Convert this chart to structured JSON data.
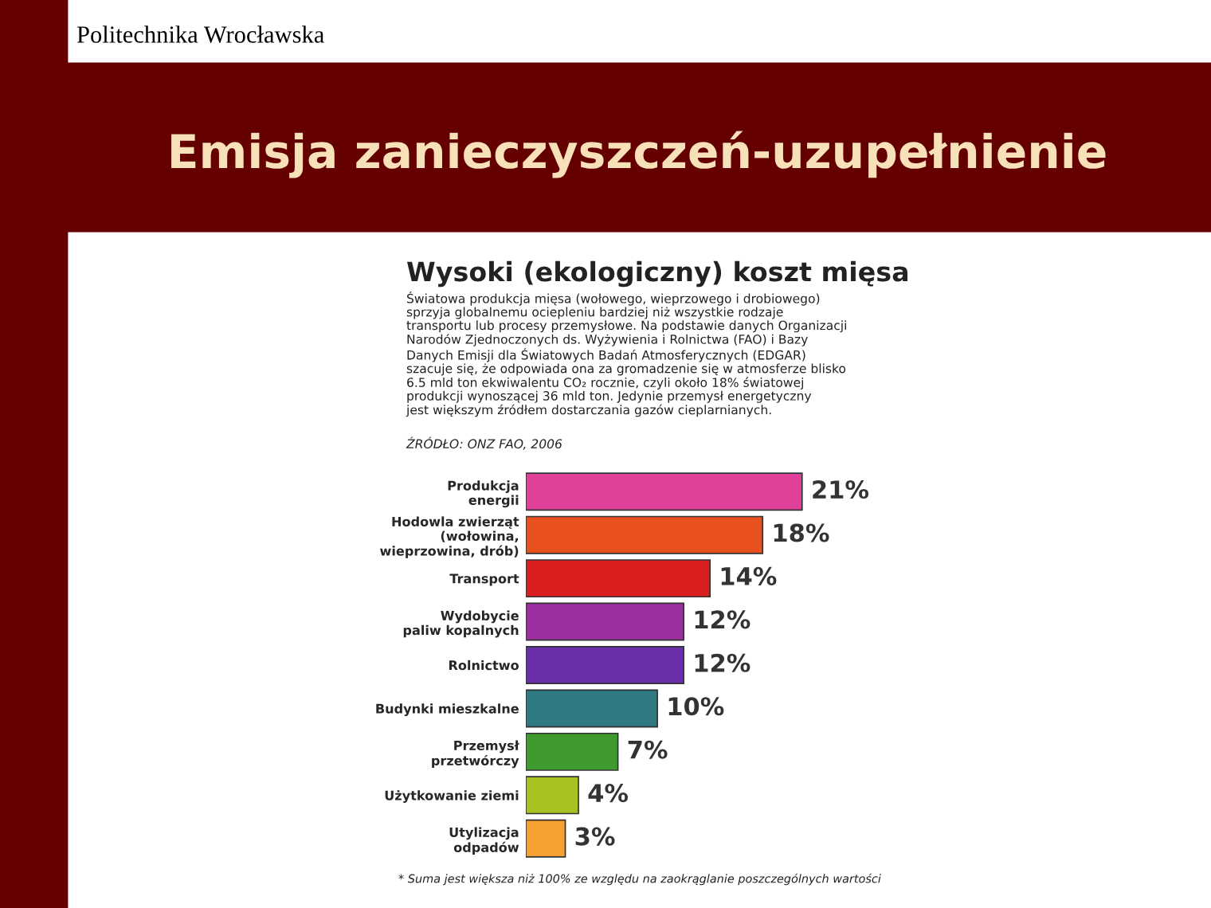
{
  "chart_data": {
    "type": "bar",
    "orientation": "horizontal",
    "title": "Emisja zanieczyszczeń-uzupełnienie",
    "subtitle": "Wysoki (ekologiczny) koszt mięsa",
    "annotations": [
      "Politechnika Wrocławska",
      "Światowa produkcja mięsa (wołowego, wieprzowego i drobiowego)\nsprzyja globalnemu ociepleniu bardziej niż wszystkie rodzaje\ntransportu lub procesy przemysłowe. Na podstawie danych Organizacji\nNarodów Zjednoczonych ds. Wyżywienia i Rolnictwa (FAO) i Bazy\nDanych Emisji dla Światowych Badań Atmosferycznych (EDGAR)\nszacuje się, że odpowiada ona za gromadzenie się w atmosferze blisko\n6.5 mld ton ekwiwalentu CO₂ rocznie, czyli około 18% światowej\nprodukcji wynoszącej 36 mld ton. Jedynie przemysł energetyczny\njest większym źródłem dostarczania gazów cieplarnianych.",
      "ŹRÓDŁO: ONZ FAO, 2006",
      "* Suma jest większa niż 100% ze względu na zaokrąglanie poszczególnych wartości"
    ],
    "categories": [
      "Produkcja\nenergii",
      "Hodowla zwierząt\n(wołowina,\nwieprzowina, drób)",
      "Transport",
      "Wydobycie\npaliw kopalnych",
      "Rolnictwo",
      "Budynki mieszkalne",
      "Przemysł\nprzetwórczy",
      "Użytkowanie ziemi",
      "Utylizacja\nodpadów"
    ],
    "values": [
      21,
      18,
      14,
      12,
      12,
      10,
      7,
      4,
      3
    ],
    "value_labels": [
      "21%",
      "18%",
      "14%",
      "12%",
      "12%",
      "10%",
      "7%",
      "4%",
      "3%"
    ],
    "colors": [
      "#e0409a",
      "#e8501e",
      "#d81e1e",
      "#9b2fa0",
      "#6a2fa8",
      "#2f7a82",
      "#3f9a30",
      "#a8c020",
      "#f5a030"
    ],
    "grid": false,
    "legend": false
  }
}
